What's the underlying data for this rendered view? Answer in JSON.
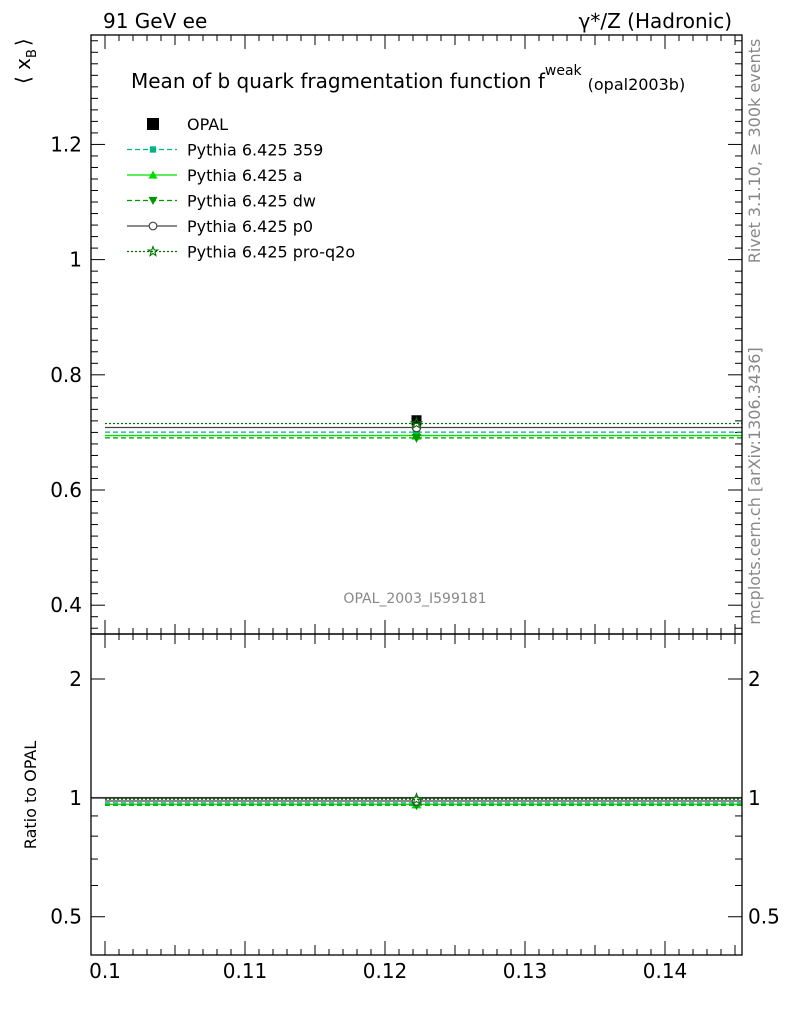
{
  "header": {
    "left": "91 GeV ee",
    "right": "γ*/Z (Hadronic)"
  },
  "side_labels": {
    "rivet": "Rivet 3.1.10, ≥ 300k events",
    "mcplots": "mcplots.cern.ch [arXiv:1306.3436]"
  },
  "chart_data": [
    {
      "type": "scatter",
      "title": "Mean of b quark fragmentation function f",
      "title_sup": "weak",
      "title_tag": "(opal2003b)",
      "ylabel": "⟨ x",
      "ylabel_sub": "B",
      "ylabel_close": "⟩",
      "watermark": "OPAL_2003_I599181",
      "xlim": [
        0.099,
        0.1455
      ],
      "ylim": [
        0.35,
        1.39
      ],
      "yticks": [
        0.4,
        0.6,
        0.8,
        1,
        1.2
      ],
      "ytick_labels": [
        "0.4",
        "0.6",
        "0.8",
        "1",
        "1.2"
      ],
      "legend_position": "top-left",
      "series": [
        {
          "name": "OPAL",
          "color": "#000000",
          "marker": "square-filled",
          "line": "none",
          "x": 0.12225,
          "y": 0.7211,
          "xerr": [
            0.0,
            0.0
          ],
          "yerr": 0.005
        },
        {
          "name": "Pythia 6.425 359",
          "color": "#00b386",
          "marker": "square-small",
          "line": "dashed",
          "x": 0.12225,
          "y": 0.7005,
          "xrange": [
            0.1,
            0.1455
          ]
        },
        {
          "name": "Pythia 6.425 a",
          "color": "#00dd00",
          "marker": "triangle-up",
          "line": "solid",
          "x": 0.12225,
          "y": 0.6945,
          "xrange": [
            0.1,
            0.1455
          ]
        },
        {
          "name": "Pythia 6.425 dw",
          "color": "#009900",
          "marker": "triangle-down",
          "line": "dashed",
          "x": 0.12225,
          "y": 0.6905,
          "xrange": [
            0.1,
            0.1455
          ]
        },
        {
          "name": "Pythia 6.425 p0",
          "color": "#444444",
          "marker": "circle-open",
          "line": "solid",
          "x": 0.12225,
          "y": 0.7085,
          "xrange": [
            0.1,
            0.1455
          ]
        },
        {
          "name": "Pythia 6.425 pro-q2o",
          "color": "#007700",
          "marker": "star-open",
          "line": "dotted",
          "x": 0.12225,
          "y": 0.7155,
          "xrange": [
            0.1,
            0.1455
          ]
        }
      ]
    },
    {
      "type": "scatter",
      "ylabel": "Ratio to OPAL",
      "xlim": [
        0.099,
        0.1455
      ],
      "ylim": [
        0.4,
        2.6
      ],
      "log_y": true,
      "yticks": [
        0.5,
        1,
        2
      ],
      "ytick_labels": [
        "0.5",
        "1",
        "2"
      ],
      "xticks": [
        0.1,
        0.11,
        0.12,
        0.13,
        0.14
      ],
      "xtick_labels": [
        "0.1",
        "0.11",
        "0.12",
        "0.13",
        "0.14"
      ],
      "band": [
        0.993,
        1.007
      ],
      "series": [
        {
          "name": "Pythia 6.425 359",
          "x": 0.12225,
          "y": 0.971
        },
        {
          "name": "Pythia 6.425 a",
          "x": 0.12225,
          "y": 0.963
        },
        {
          "name": "Pythia 6.425 dw",
          "x": 0.12225,
          "y": 0.958
        },
        {
          "name": "Pythia 6.425 p0",
          "x": 0.12225,
          "y": 0.982
        },
        {
          "name": "Pythia 6.425 pro-q2o",
          "x": 0.12225,
          "y": 0.992
        }
      ]
    }
  ]
}
